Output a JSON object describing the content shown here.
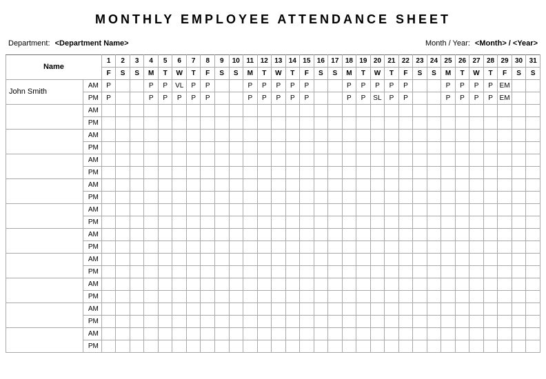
{
  "title": "MONTHLY  EMPLOYEE  ATTENDANCE  SHEET",
  "meta": {
    "department_label": "Department:",
    "department_value": "<Department Name>",
    "month_year_label": "Month / Year:",
    "month_year_value": "<Month> / <Year>"
  },
  "header": {
    "name_label": "Name",
    "am_label": "AM",
    "pm_label": "PM",
    "day_numbers": [
      "1",
      "2",
      "3",
      "4",
      "5",
      "6",
      "7",
      "8",
      "9",
      "10",
      "11",
      "12",
      "13",
      "14",
      "15",
      "16",
      "17",
      "18",
      "19",
      "20",
      "21",
      "22",
      "23",
      "24",
      "25",
      "26",
      "27",
      "28",
      "29",
      "30",
      "31"
    ],
    "day_letters": [
      "F",
      "S",
      "S",
      "M",
      "T",
      "W",
      "T",
      "F",
      "S",
      "S",
      "M",
      "T",
      "W",
      "T",
      "F",
      "S",
      "S",
      "M",
      "T",
      "W",
      "T",
      "F",
      "S",
      "S",
      "M",
      "T",
      "W",
      "T",
      "F",
      "S",
      "S"
    ]
  },
  "employees": [
    {
      "name": "John Smith",
      "am": [
        "P",
        "",
        "",
        "P",
        "P",
        "VL",
        "P",
        "P",
        "",
        "",
        "P",
        "P",
        "P",
        "P",
        "P",
        "",
        "",
        "P",
        "P",
        "P",
        "P",
        "P",
        "",
        "",
        "P",
        "P",
        "P",
        "P",
        "EM",
        "",
        ""
      ],
      "pm": [
        "P",
        "",
        "",
        "P",
        "P",
        "P",
        "P",
        "P",
        "",
        "",
        "P",
        "P",
        "P",
        "P",
        "P",
        "",
        "",
        "P",
        "P",
        "SL",
        "P",
        "P",
        "",
        "",
        "P",
        "P",
        "P",
        "P",
        "EM",
        "",
        ""
      ]
    },
    {
      "name": "",
      "am": [
        "",
        "",
        "",
        "",
        "",
        "",
        "",
        "",
        "",
        "",
        "",
        "",
        "",
        "",
        "",
        "",
        "",
        "",
        "",
        "",
        "",
        "",
        "",
        "",
        "",
        "",
        "",
        "",
        "",
        "",
        ""
      ],
      "pm": [
        "",
        "",
        "",
        "",
        "",
        "",
        "",
        "",
        "",
        "",
        "",
        "",
        "",
        "",
        "",
        "",
        "",
        "",
        "",
        "",
        "",
        "",
        "",
        "",
        "",
        "",
        "",
        "",
        "",
        "",
        ""
      ]
    },
    {
      "name": "",
      "am": [
        "",
        "",
        "",
        "",
        "",
        "",
        "",
        "",
        "",
        "",
        "",
        "",
        "",
        "",
        "",
        "",
        "",
        "",
        "",
        "",
        "",
        "",
        "",
        "",
        "",
        "",
        "",
        "",
        "",
        "",
        ""
      ],
      "pm": [
        "",
        "",
        "",
        "",
        "",
        "",
        "",
        "",
        "",
        "",
        "",
        "",
        "",
        "",
        "",
        "",
        "",
        "",
        "",
        "",
        "",
        "",
        "",
        "",
        "",
        "",
        "",
        "",
        "",
        "",
        ""
      ]
    },
    {
      "name": "",
      "am": [
        "",
        "",
        "",
        "",
        "",
        "",
        "",
        "",
        "",
        "",
        "",
        "",
        "",
        "",
        "",
        "",
        "",
        "",
        "",
        "",
        "",
        "",
        "",
        "",
        "",
        "",
        "",
        "",
        "",
        "",
        ""
      ],
      "pm": [
        "",
        "",
        "",
        "",
        "",
        "",
        "",
        "",
        "",
        "",
        "",
        "",
        "",
        "",
        "",
        "",
        "",
        "",
        "",
        "",
        "",
        "",
        "",
        "",
        "",
        "",
        "",
        "",
        "",
        "",
        ""
      ]
    },
    {
      "name": "",
      "am": [
        "",
        "",
        "",
        "",
        "",
        "",
        "",
        "",
        "",
        "",
        "",
        "",
        "",
        "",
        "",
        "",
        "",
        "",
        "",
        "",
        "",
        "",
        "",
        "",
        "",
        "",
        "",
        "",
        "",
        "",
        ""
      ],
      "pm": [
        "",
        "",
        "",
        "",
        "",
        "",
        "",
        "",
        "",
        "",
        "",
        "",
        "",
        "",
        "",
        "",
        "",
        "",
        "",
        "",
        "",
        "",
        "",
        "",
        "",
        "",
        "",
        "",
        "",
        "",
        ""
      ]
    },
    {
      "name": "",
      "am": [
        "",
        "",
        "",
        "",
        "",
        "",
        "",
        "",
        "",
        "",
        "",
        "",
        "",
        "",
        "",
        "",
        "",
        "",
        "",
        "",
        "",
        "",
        "",
        "",
        "",
        "",
        "",
        "",
        "",
        "",
        ""
      ],
      "pm": [
        "",
        "",
        "",
        "",
        "",
        "",
        "",
        "",
        "",
        "",
        "",
        "",
        "",
        "",
        "",
        "",
        "",
        "",
        "",
        "",
        "",
        "",
        "",
        "",
        "",
        "",
        "",
        "",
        "",
        "",
        ""
      ]
    },
    {
      "name": "",
      "am": [
        "",
        "",
        "",
        "",
        "",
        "",
        "",
        "",
        "",
        "",
        "",
        "",
        "",
        "",
        "",
        "",
        "",
        "",
        "",
        "",
        "",
        "",
        "",
        "",
        "",
        "",
        "",
        "",
        "",
        "",
        ""
      ],
      "pm": [
        "",
        "",
        "",
        "",
        "",
        "",
        "",
        "",
        "",
        "",
        "",
        "",
        "",
        "",
        "",
        "",
        "",
        "",
        "",
        "",
        "",
        "",
        "",
        "",
        "",
        "",
        "",
        "",
        "",
        "",
        ""
      ]
    },
    {
      "name": "",
      "am": [
        "",
        "",
        "",
        "",
        "",
        "",
        "",
        "",
        "",
        "",
        "",
        "",
        "",
        "",
        "",
        "",
        "",
        "",
        "",
        "",
        "",
        "",
        "",
        "",
        "",
        "",
        "",
        "",
        "",
        "",
        ""
      ],
      "pm": [
        "",
        "",
        "",
        "",
        "",
        "",
        "",
        "",
        "",
        "",
        "",
        "",
        "",
        "",
        "",
        "",
        "",
        "",
        "",
        "",
        "",
        "",
        "",
        "",
        "",
        "",
        "",
        "",
        "",
        "",
        ""
      ]
    },
    {
      "name": "",
      "am": [
        "",
        "",
        "",
        "",
        "",
        "",
        "",
        "",
        "",
        "",
        "",
        "",
        "",
        "",
        "",
        "",
        "",
        "",
        "",
        "",
        "",
        "",
        "",
        "",
        "",
        "",
        "",
        "",
        "",
        "",
        ""
      ],
      "pm": [
        "",
        "",
        "",
        "",
        "",
        "",
        "",
        "",
        "",
        "",
        "",
        "",
        "",
        "",
        "",
        "",
        "",
        "",
        "",
        "",
        "",
        "",
        "",
        "",
        "",
        "",
        "",
        "",
        "",
        "",
        ""
      ]
    },
    {
      "name": "",
      "am": [
        "",
        "",
        "",
        "",
        "",
        "",
        "",
        "",
        "",
        "",
        "",
        "",
        "",
        "",
        "",
        "",
        "",
        "",
        "",
        "",
        "",
        "",
        "",
        "",
        "",
        "",
        "",
        "",
        "",
        "",
        ""
      ],
      "pm": [
        "",
        "",
        "",
        "",
        "",
        "",
        "",
        "",
        "",
        "",
        "",
        "",
        "",
        "",
        "",
        "",
        "",
        "",
        "",
        "",
        "",
        "",
        "",
        "",
        "",
        "",
        "",
        "",
        "",
        "",
        ""
      ]
    },
    {
      "name": "",
      "am": [
        "",
        "",
        "",
        "",
        "",
        "",
        "",
        "",
        "",
        "",
        "",
        "",
        "",
        "",
        "",
        "",
        "",
        "",
        "",
        "",
        "",
        "",
        "",
        "",
        "",
        "",
        "",
        "",
        "",
        "",
        ""
      ],
      "pm": [
        "",
        "",
        "",
        "",
        "",
        "",
        "",
        "",
        "",
        "",
        "",
        "",
        "",
        "",
        "",
        "",
        "",
        "",
        "",
        "",
        "",
        "",
        "",
        "",
        "",
        "",
        "",
        "",
        "",
        "",
        ""
      ]
    }
  ]
}
